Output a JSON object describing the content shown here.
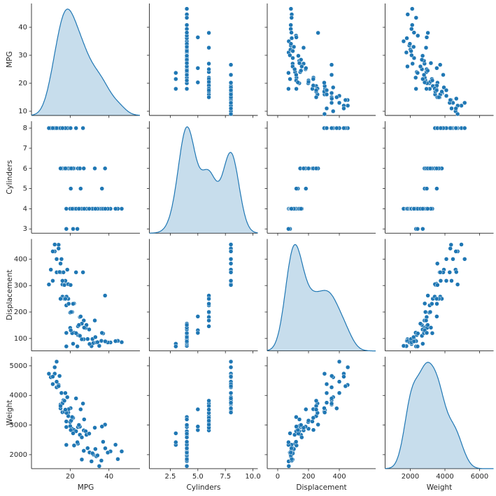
{
  "chart_data": {
    "type": "pairplot",
    "color": "#1f77b4",
    "variables": [
      {
        "name": "MPG",
        "values": [
          18,
          15,
          16,
          14,
          13,
          12,
          11,
          10,
          9,
          17,
          15.5,
          13,
          14,
          12,
          19,
          16.5,
          14.5,
          18.5,
          13,
          20.2,
          17.5,
          23,
          26.6,
          15,
          11,
          16,
          21,
          19,
          18,
          22,
          16,
          20,
          17,
          24,
          25,
          19.2,
          27,
          15,
          18.1,
          21.5,
          32.7,
          38,
          20.5,
          17.5,
          27,
          24,
          26,
          25,
          28,
          31,
          35,
          29,
          32,
          22,
          30,
          33.5,
          36.1,
          40.8,
          44.6,
          46.6,
          43.4,
          37,
          34.1,
          31.5,
          28.4,
          26,
          23,
          20,
          18,
          21,
          39.4,
          29.8,
          27.2,
          33,
          38.1,
          24.5,
          20.3,
          25.4,
          36.4,
          18,
          21.5,
          23.7
        ],
        "xlim": [
          0,
          56
        ],
        "xticks": [
          20,
          40
        ],
        "ylim": [
          8.5,
          48.5
        ],
        "yticks": [
          10,
          20,
          30,
          40
        ]
      },
      {
        "name": "Cylinders",
        "values": [
          8,
          8,
          8,
          8,
          8,
          8,
          8,
          8,
          8,
          8,
          8,
          8,
          8,
          8,
          8,
          8,
          8,
          8,
          8,
          8,
          8,
          8,
          8,
          8,
          8,
          8,
          6,
          6,
          6,
          6,
          6,
          6,
          6,
          6,
          6,
          6,
          6,
          6,
          6,
          6,
          6,
          6,
          6,
          6,
          4,
          4,
          4,
          4,
          4,
          4,
          4,
          4,
          4,
          4,
          4,
          4,
          4,
          4,
          4,
          4,
          4,
          4,
          4,
          4,
          4,
          4,
          4,
          4,
          4,
          4,
          4,
          4,
          4,
          4,
          4,
          4,
          5,
          5,
          5,
          3,
          3,
          3
        ],
        "xlim": [
          0.6,
          10.44
        ],
        "xticks": [
          2.5,
          {
            "value": 5,
            "label": "5.0"
          },
          7.5,
          {
            "value": 10,
            "label": "10.0"
          }
        ],
        "ylim": [
          2.79,
          8.34
        ],
        "yticks": [
          3,
          4,
          5,
          6,
          7,
          8
        ]
      },
      {
        "name": "Displacement",
        "values": [
          307,
          350,
          304,
          454,
          400,
          455,
          318,
          360,
          304,
          302,
          400,
          350,
          440,
          429,
          305,
          350,
          351,
          360,
          400,
          302,
          318,
          350,
          350,
          383,
          429,
          318,
          200,
          250,
          225,
          232,
          258,
          198,
          250,
          146,
          181,
          231,
          168,
          250,
          258,
          231,
          168,
          262,
          200,
          250,
          97,
          113,
          97,
          110,
          140,
          71,
          72,
          98,
          83,
          122,
          79,
          85,
          91,
          85,
          91,
          86,
          90,
          119,
          86,
          98,
          151,
          156,
          120,
          140,
          121,
          120,
          85,
          134,
          141,
          105,
          89,
          151,
          131,
          183,
          121,
          70,
          80,
          70
        ],
        "xlim": [
          -68,
          636
        ],
        "xticks": [
          0,
          200,
          400
        ],
        "ylim": [
          53,
          476
        ],
        "yticks": [
          100,
          200,
          300,
          400
        ]
      },
      {
        "name": "Weight",
        "values": [
          3504,
          3693,
          3433,
          4354,
          4464,
          4951,
          4382,
          4615,
          4732,
          3449,
          4082,
          4274,
          4312,
          4735,
          3425,
          3840,
          4657,
          3940,
          5140,
          3570,
          4080,
          3900,
          3725,
          3563,
          4633,
          3755,
          2875,
          3302,
          3121,
          2835,
          3730,
          3102,
          3820,
          2930,
          2945,
          3535,
          2820,
          3645,
          3410,
          3245,
          2910,
          3015,
          3150,
          3520,
          2130,
          2372,
          1835,
          2672,
          2790,
          1773,
          1613,
          2220,
          2003,
          2310,
          2074,
          1945,
          1800,
          2110,
          1850,
          2110,
          2335,
          2434,
          1975,
          2045,
          2670,
          2585,
          2790,
          2965,
          2933,
          3270,
          2070,
          2711,
          3190,
          2190,
          2215,
          3003,
          2830,
          3530,
          2950,
          2330,
          2720,
          2420
        ],
        "xlim": [
          545,
          6808
        ],
        "xticks": [
          2000,
          4000,
          6000
        ],
        "ylim": [
          1528,
          5307
        ],
        "yticks": [
          2000,
          3000,
          4000,
          5000
        ]
      }
    ]
  }
}
